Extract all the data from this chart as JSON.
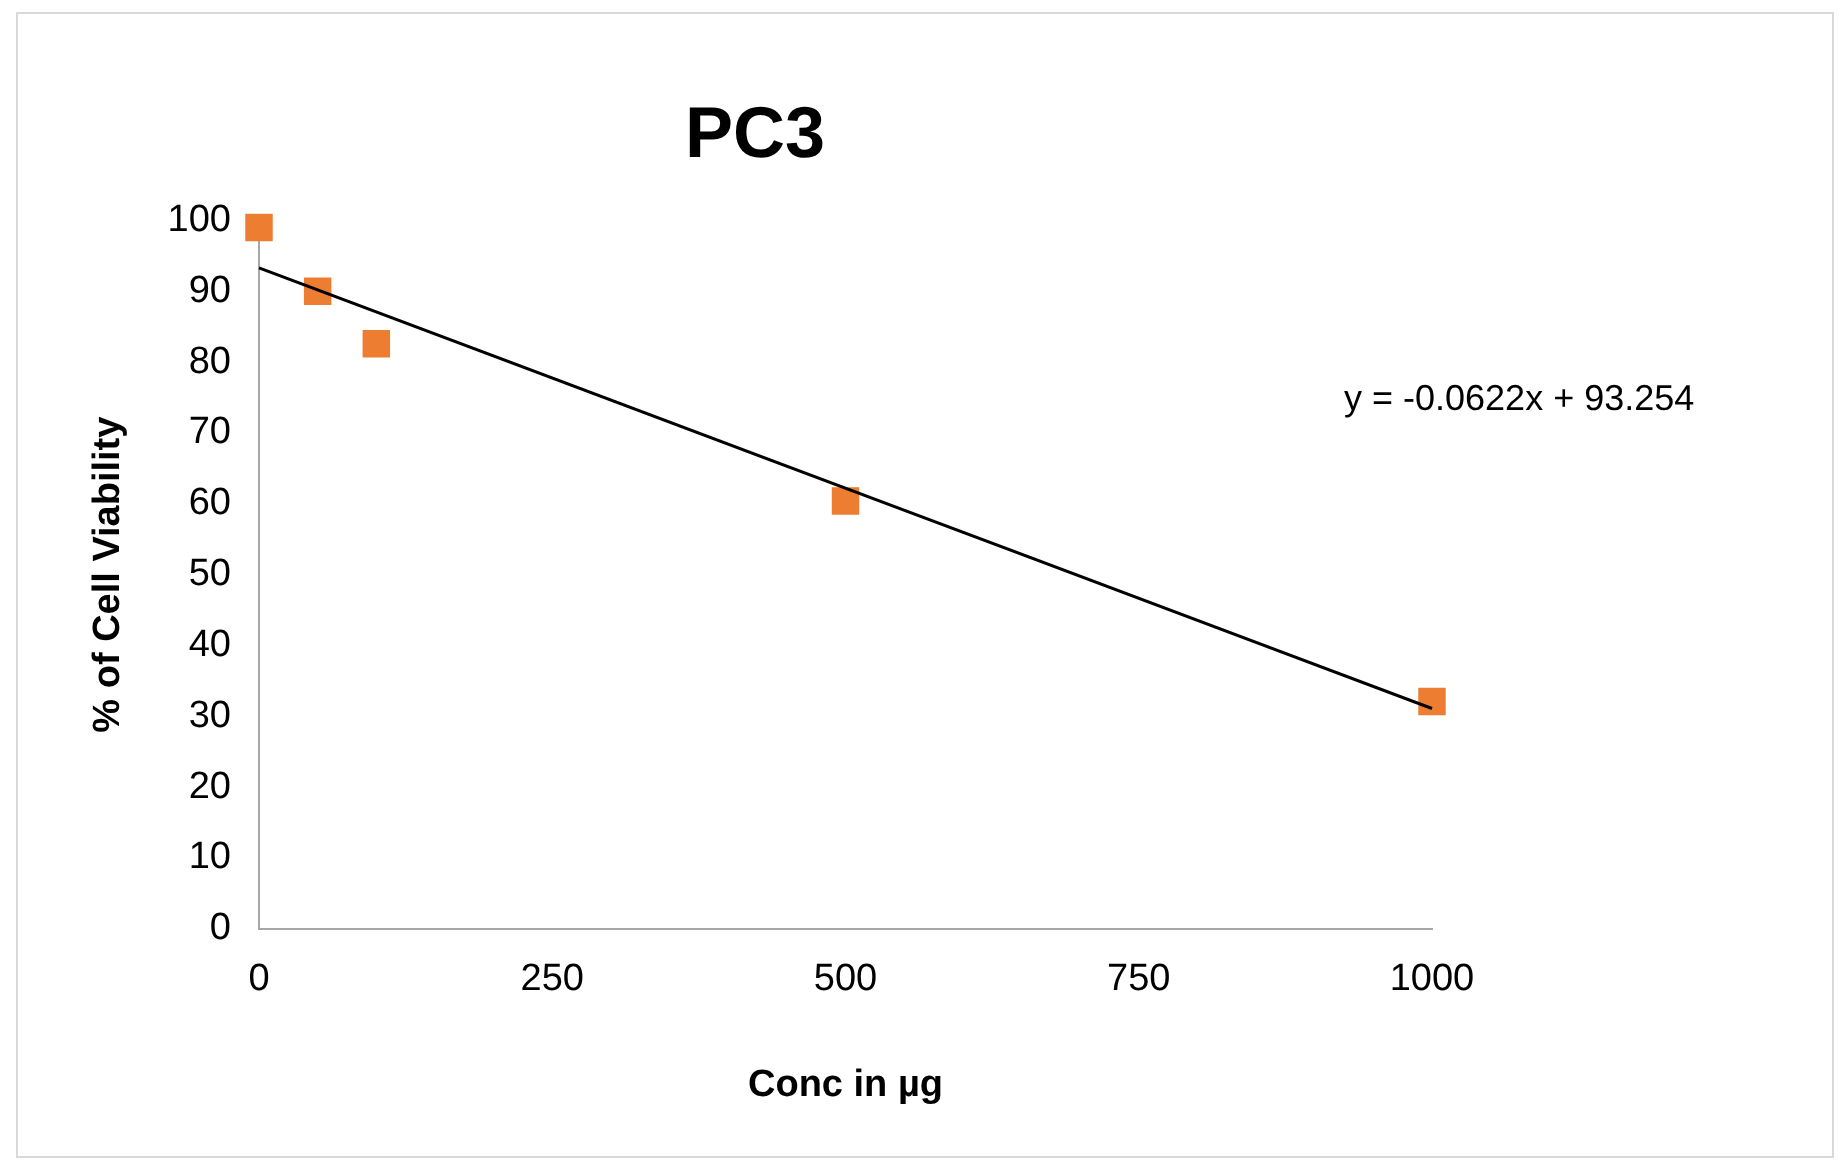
{
  "chart_data": {
    "type": "scatter",
    "title": "PC3",
    "xlabel": "Conc in µg",
    "ylabel": "% of Cell Viability",
    "x": [
      0,
      50,
      100,
      500,
      1000
    ],
    "series": [
      {
        "color": "#ed7d31",
        "values": [
          99,
          90,
          82.6,
          60.4,
          32.1
        ],
        "marker": "square"
      },
      {
        "type": "line",
        "color": "#000000",
        "x": [
          0,
          1000
        ],
        "values": [
          93.3,
          31.1
        ],
        "marker": "none",
        "line_style": "solid"
      }
    ],
    "xlim": [
      0,
      1000
    ],
    "xticks": [
      0,
      250,
      500,
      750,
      1000
    ],
    "ylim": [
      0,
      100
    ],
    "yticks": [
      0,
      10,
      20,
      30,
      40,
      50,
      60,
      70,
      80,
      90,
      100
    ],
    "grid": false,
    "legend": false,
    "annotations": [
      "y = -0.0622x + 93.254"
    ]
  }
}
